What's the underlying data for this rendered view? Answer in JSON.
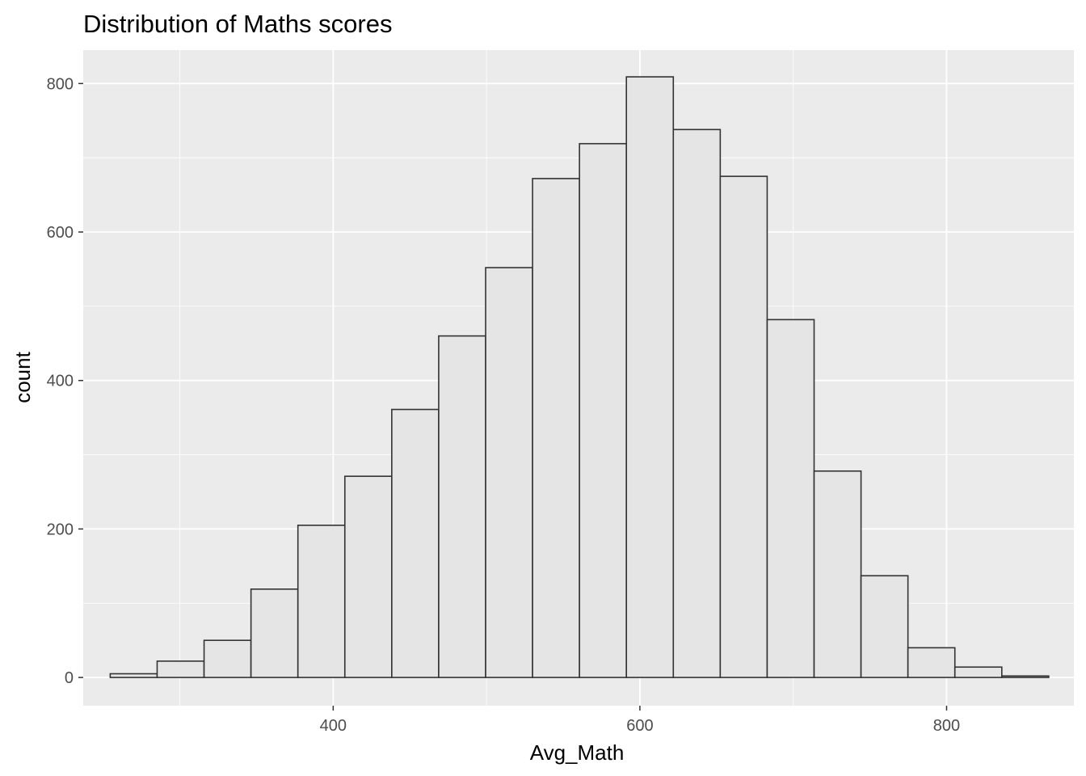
{
  "chart_data": {
    "type": "bar",
    "title": "Distribution of Maths scores",
    "xlabel": "Avg_Math",
    "ylabel": "count",
    "xlim": [
      237,
      883
    ],
    "ylim": [
      -38,
      845
    ],
    "x_ticks": [
      400,
      600,
      800
    ],
    "x_tick_labels": [
      "400",
      "600",
      "800"
    ],
    "y_ticks": [
      0,
      200,
      400,
      600,
      800
    ],
    "y_tick_labels": [
      "0",
      "200",
      "400",
      "600",
      "800"
    ],
    "grid": true,
    "bins": [
      {
        "x_start": 254.6,
        "x_end": 285.2,
        "count": 5
      },
      {
        "x_start": 285.2,
        "x_end": 315.8,
        "count": 22
      },
      {
        "x_start": 315.8,
        "x_end": 346.4,
        "count": 50
      },
      {
        "x_start": 346.4,
        "x_end": 377.0,
        "count": 119
      },
      {
        "x_start": 377.0,
        "x_end": 407.6,
        "count": 205
      },
      {
        "x_start": 407.6,
        "x_end": 438.2,
        "count": 271
      },
      {
        "x_start": 438.2,
        "x_end": 468.8,
        "count": 361
      },
      {
        "x_start": 468.8,
        "x_end": 499.4,
        "count": 460
      },
      {
        "x_start": 499.4,
        "x_end": 530.0,
        "count": 552
      },
      {
        "x_start": 530.0,
        "x_end": 560.6,
        "count": 672
      },
      {
        "x_start": 560.6,
        "x_end": 591.2,
        "count": 719
      },
      {
        "x_start": 591.2,
        "x_end": 621.8,
        "count": 809
      },
      {
        "x_start": 621.8,
        "x_end": 652.4,
        "count": 738
      },
      {
        "x_start": 652.4,
        "x_end": 683.0,
        "count": 675
      },
      {
        "x_start": 683.0,
        "x_end": 713.6,
        "count": 482
      },
      {
        "x_start": 713.6,
        "x_end": 744.2,
        "count": 278
      },
      {
        "x_start": 744.2,
        "x_end": 774.8,
        "count": 137
      },
      {
        "x_start": 774.8,
        "x_end": 805.4,
        "count": 40
      },
      {
        "x_start": 805.4,
        "x_end": 836.0,
        "count": 14
      },
      {
        "x_start": 836.0,
        "x_end": 866.6,
        "count": 2
      }
    ],
    "colors": {
      "panel_bg": "#ebebeb",
      "grid_major": "#ffffff",
      "bar_fill": "#e5e5e5",
      "bar_stroke": "#333333",
      "tick": "#333333"
    }
  }
}
